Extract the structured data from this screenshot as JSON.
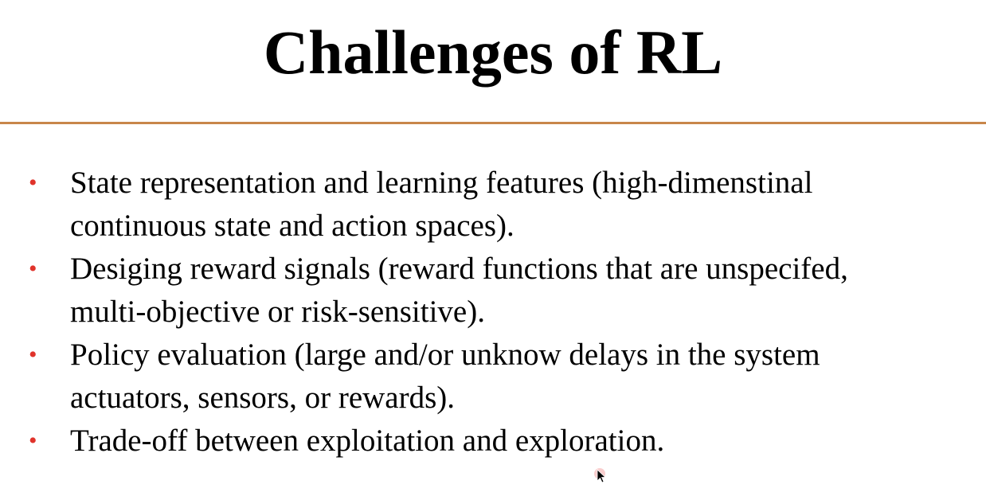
{
  "slide": {
    "title": "Challenges of RL",
    "accent_color": "#c8864a",
    "bullet_color": "#e0332b",
    "bullet_symbol": "•",
    "bullets": [
      {
        "line1": "State representation and learning features (high-dimenstinal",
        "line2": "continuous state and action spaces)."
      },
      {
        "line1": "Desiging reward signals (reward functions that are unspecifed,",
        "line2": "multi-objective or risk-sensitive)."
      },
      {
        "line1": "Policy evaluation (large and/or unknow delays in the system",
        "line2": "actuators, sensors, or rewards)."
      },
      {
        "line1": "Trade-off between exploitation and exploration.",
        "line2": ""
      }
    ]
  },
  "cursor": {
    "icon": "mouse-pointer-icon"
  }
}
